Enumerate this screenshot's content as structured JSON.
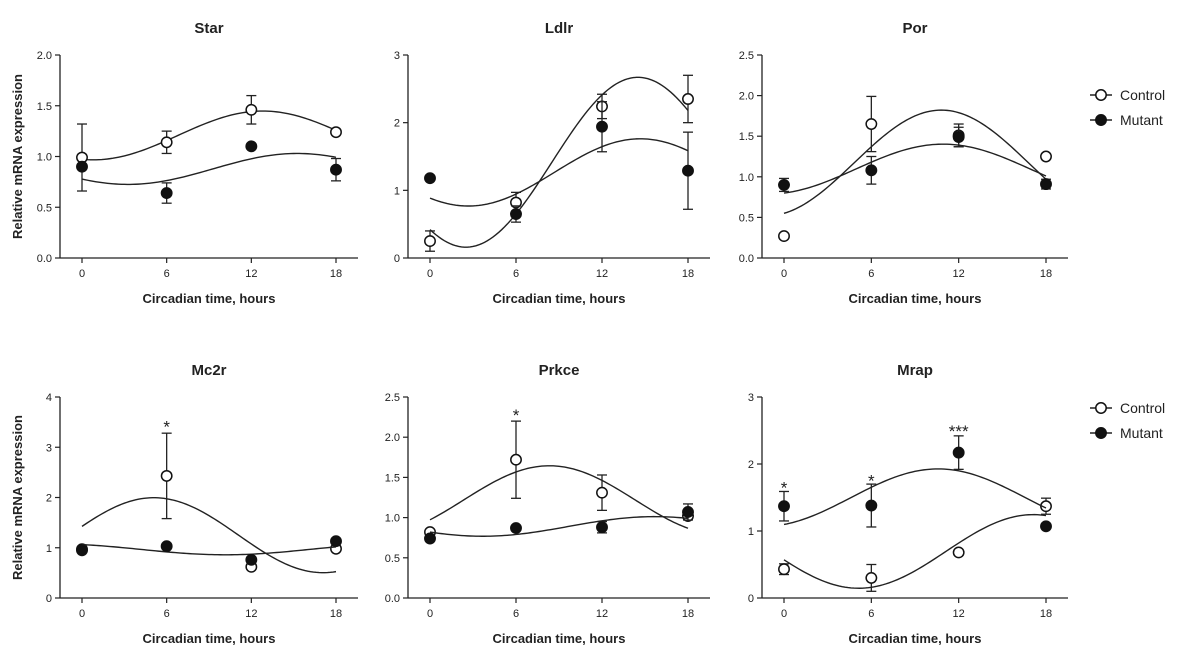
{
  "legend": [
    {
      "label": "Control",
      "fill": "#ffffff"
    },
    {
      "label": "Mutant",
      "fill": "#111111"
    }
  ],
  "ylabel": "Relative mRNA expression",
  "chart_data": [
    {
      "type": "scatter",
      "title": "Star",
      "xlabel": "Circadian time, hours",
      "x": [
        0,
        6,
        12,
        18
      ],
      "xticks": [
        "0",
        "6",
        "12",
        "18"
      ],
      "ylim": [
        0,
        2.0
      ],
      "yticks": [
        "0.0",
        "0.5",
        "1.0",
        "1.5",
        "2.0"
      ],
      "series": [
        {
          "name": "Control",
          "values": [
            0.99,
            1.14,
            1.46,
            1.24
          ],
          "errors": [
            0.33,
            0.11,
            0.14,
            0
          ]
        },
        {
          "name": "Mutant",
          "values": [
            0.9,
            0.64,
            1.1,
            0.87
          ],
          "errors": [
            0,
            0.1,
            0,
            0.11
          ]
        }
      ],
      "annotations": []
    },
    {
      "type": "scatter",
      "title": "Ldlr",
      "xlabel": "Circadian time, hours",
      "x": [
        0,
        6,
        12,
        18
      ],
      "xticks": [
        "0",
        "6",
        "12",
        "18"
      ],
      "ylim": [
        0,
        3
      ],
      "yticks": [
        "0",
        "1",
        "2",
        "3"
      ],
      "series": [
        {
          "name": "Control",
          "values": [
            0.25,
            0.82,
            2.24,
            2.35
          ],
          "errors": [
            0.15,
            0.15,
            0.18,
            0.35
          ]
        },
        {
          "name": "Mutant",
          "values": [
            1.18,
            0.65,
            1.94,
            1.29
          ],
          "errors": [
            0,
            0.12,
            0.37,
            0.57
          ]
        }
      ],
      "annotations": []
    },
    {
      "type": "scatter",
      "title": "Por",
      "xlabel": "Circadian time, hours",
      "x": [
        0,
        6,
        12,
        18
      ],
      "xticks": [
        "0",
        "6",
        "12",
        "18"
      ],
      "ylim": [
        0,
        2.5
      ],
      "yticks": [
        "0.0",
        "0.5",
        "1.0",
        "1.5",
        "2.0",
        "2.5"
      ],
      "series": [
        {
          "name": "Control",
          "values": [
            0.27,
            1.65,
            1.51,
            1.25
          ],
          "errors": [
            0,
            0.34,
            0.14,
            0
          ]
        },
        {
          "name": "Mutant",
          "values": [
            0.9,
            1.08,
            1.49,
            0.91
          ],
          "errors": [
            0.08,
            0.17,
            0.12,
            0.06
          ]
        }
      ],
      "annotations": []
    },
    {
      "type": "scatter",
      "title": "Mc2r",
      "xlabel": "Circadian time, hours",
      "x": [
        0,
        6,
        12,
        18
      ],
      "xticks": [
        "0",
        "6",
        "12",
        "18"
      ],
      "ylim": [
        0,
        4
      ],
      "yticks": [
        "0",
        "1",
        "2",
        "3",
        "4"
      ],
      "series": [
        {
          "name": "Control",
          "values": [
            0.97,
            2.43,
            0.62,
            0.98
          ],
          "errors": [
            0,
            0.85,
            0,
            0
          ]
        },
        {
          "name": "Mutant",
          "values": [
            0.95,
            1.03,
            0.76,
            1.13
          ],
          "errors": [
            0,
            0,
            0,
            0
          ]
        }
      ],
      "annotations": [
        {
          "x": 6,
          "y": 3.45,
          "text": "*"
        }
      ]
    },
    {
      "type": "scatter",
      "title": "Prkce",
      "xlabel": "Circadian time, hours",
      "x": [
        0,
        6,
        12,
        18
      ],
      "xticks": [
        "0",
        "6",
        "12",
        "18"
      ],
      "ylim": [
        0,
        2.5
      ],
      "yticks": [
        "0.0",
        "0.5",
        "1.0",
        "1.5",
        "2.0",
        "2.5"
      ],
      "series": [
        {
          "name": "Control",
          "values": [
            0.82,
            1.72,
            1.31,
            1.02
          ],
          "errors": [
            0,
            0.48,
            0.22,
            0
          ]
        },
        {
          "name": "Mutant",
          "values": [
            0.74,
            0.87,
            0.88,
            1.07
          ],
          "errors": [
            0,
            0,
            0.07,
            0.1
          ]
        }
      ],
      "annotations": [
        {
          "x": 6,
          "y": 2.3,
          "text": "*"
        }
      ]
    },
    {
      "type": "scatter",
      "title": "Mrap",
      "xlabel": "Circadian time, hours",
      "x": [
        0,
        6,
        12,
        18
      ],
      "xticks": [
        "0",
        "6",
        "12",
        "18"
      ],
      "ylim": [
        0,
        3
      ],
      "yticks": [
        "0",
        "1",
        "2",
        "3"
      ],
      "series": [
        {
          "name": "Control",
          "values": [
            0.43,
            0.3,
            0.68,
            1.37
          ],
          "errors": [
            0.08,
            0.2,
            0,
            0.12
          ]
        },
        {
          "name": "Mutant",
          "values": [
            1.37,
            1.38,
            2.17,
            1.07
          ],
          "errors": [
            0.22,
            0.32,
            0.25,
            0
          ]
        }
      ],
      "annotations": [
        {
          "x": 0,
          "y": 1.68,
          "text": "*"
        },
        {
          "x": 6,
          "y": 1.78,
          "text": "*"
        },
        {
          "x": 12,
          "y": 2.52,
          "text": "***"
        }
      ]
    }
  ]
}
